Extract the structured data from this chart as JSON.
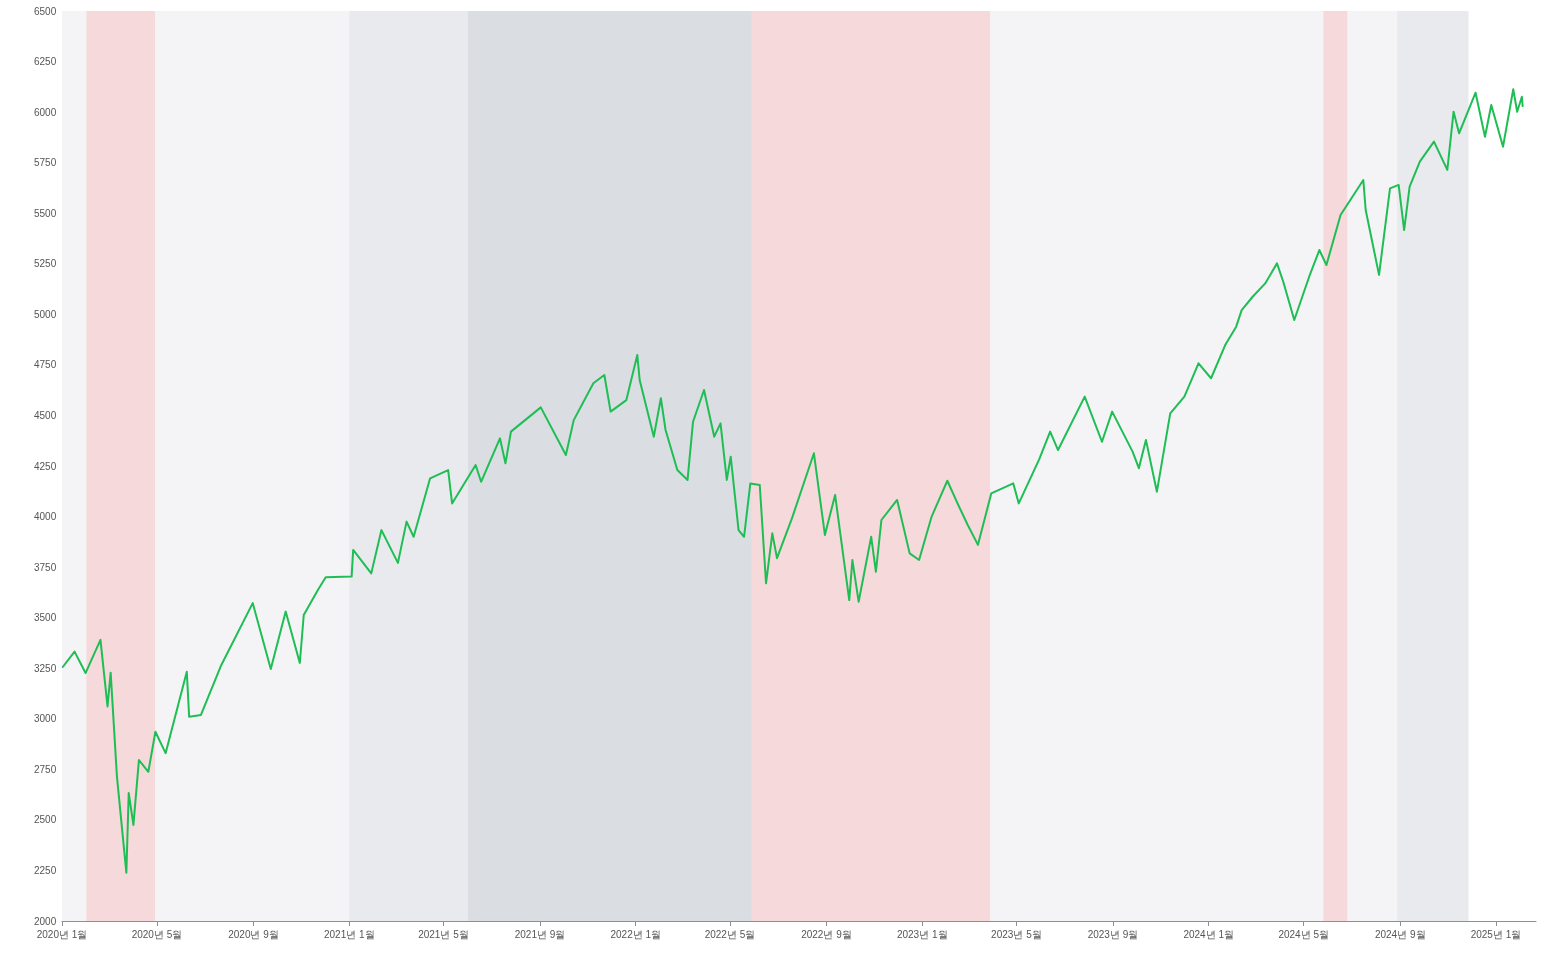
{
  "chart_data": {
    "type": "line",
    "x": [
      "2020-01-02",
      "2020-01-17",
      "2020-01-31",
      "2020-02-19",
      "2020-02-28",
      "2020-03-03",
      "2020-03-11",
      "2020-03-23",
      "2020-03-26",
      "2020-04-01",
      "2020-04-08",
      "2020-04-20",
      "2020-04-29",
      "2020-05-12",
      "2020-06-08",
      "2020-06-11",
      "2020-06-26",
      "2020-07-22",
      "2020-08-31",
      "2020-09-23",
      "2020-10-12",
      "2020-10-30",
      "2020-11-04",
      "2020-11-22",
      "2020-12-02",
      "2021-01-04",
      "2021-01-06",
      "2021-01-29",
      "2021-02-11",
      "2021-03-04",
      "2021-03-15",
      "2021-03-24",
      "2021-04-14",
      "2021-05-07",
      "2021-05-12",
      "2021-06-11",
      "2021-06-18",
      "2021-07-12",
      "2021-07-19",
      "2021-07-26",
      "2021-09-02",
      "2021-10-04",
      "2021-10-14",
      "2021-11-08",
      "2021-11-22",
      "2021-11-30",
      "2021-12-20",
      "2022-01-03",
      "2022-01-06",
      "2022-01-24",
      "2022-02-02",
      "2022-02-08",
      "2022-02-23",
      "2022-03-08",
      "2022-03-15",
      "2022-03-29",
      "2022-04-11",
      "2022-04-19",
      "2022-04-27",
      "2022-05-02",
      "2022-05-12",
      "2022-05-19",
      "2022-05-27",
      "2022-06-08",
      "2022-06-16",
      "2022-06-24",
      "2022-06-30",
      "2022-07-19",
      "2022-08-16",
      "2022-08-30",
      "2022-09-12",
      "2022-09-30",
      "2022-10-04",
      "2022-10-12",
      "2022-10-28",
      "2022-11-03",
      "2022-11-10",
      "2022-11-30",
      "2022-12-16",
      "2022-12-28",
      "2023-01-13",
      "2023-02-02",
      "2023-02-15",
      "2023-02-28",
      "2023-03-13",
      "2023-03-30",
      "2023-04-27",
      "2023-05-04",
      "2023-05-30",
      "2023-06-13",
      "2023-06-23",
      "2023-07-27",
      "2023-08-18",
      "2023-08-31",
      "2023-09-26",
      "2023-10-04",
      "2023-10-13",
      "2023-10-27",
      "2023-11-13",
      "2023-12-01",
      "2023-12-19",
      "2024-01-04",
      "2024-01-22",
      "2024-02-05",
      "2024-02-12",
      "2024-02-26",
      "2024-03-13",
      "2024-03-28",
      "2024-04-05",
      "2024-04-19",
      "2024-05-08",
      "2024-05-21",
      "2024-05-30",
      "2024-06-17",
      "2024-07-16",
      "2024-07-19",
      "2024-08-05",
      "2024-08-19",
      "2024-08-30",
      "2024-09-06",
      "2024-09-13",
      "2024-09-26",
      "2024-10-14",
      "2024-10-31",
      "2024-11-08",
      "2024-11-15",
      "2024-12-06",
      "2024-12-18",
      "2024-12-26",
      "2025-01-10",
      "2025-01-23",
      "2025-01-28",
      "2025-02-03",
      "2025-02-04"
    ],
    "series": [
      {
        "color": "#1fbe55",
        "values": [
          3256,
          3332,
          3226,
          3390,
          3061,
          3228,
          2714,
          2239,
          2633,
          2475,
          2796,
          2738,
          2936,
          2830,
          3233,
          3010,
          3019,
          3266,
          3572,
          3246,
          3530,
          3276,
          3513,
          3637,
          3700,
          3703,
          3835,
          3719,
          3933,
          3771,
          3975,
          3900,
          4189,
          4230,
          4065,
          4255,
          4172,
          4387,
          4263,
          4420,
          4540,
          4304,
          4477,
          4659,
          4700,
          4519,
          4576,
          4799,
          4675,
          4395,
          4585,
          4428,
          4230,
          4181,
          4469,
          4626,
          4395,
          4461,
          4181,
          4296,
          3933,
          3900,
          4164,
          4156,
          3670,
          3917,
          3794,
          3991,
          4313,
          3909,
          4107,
          3587,
          3785,
          3579,
          3900,
          3727,
          3983,
          4082,
          3818,
          3785,
          4000,
          4177,
          4065,
          3958,
          3860,
          4115,
          4164,
          4065,
          4283,
          4420,
          4329,
          4593,
          4370,
          4519,
          4321,
          4239,
          4379,
          4123,
          4510,
          4593,
          4758,
          4684,
          4848,
          4939,
          5021,
          5087,
          5153,
          5252,
          5161,
          4972,
          5186,
          5318,
          5244,
          5491,
          5664,
          5516,
          5195,
          5623,
          5640,
          5417,
          5631,
          5755,
          5854,
          5714,
          6002,
          5895,
          6096,
          5878,
          6035,
          5829,
          6113,
          6002,
          6076,
          6030
        ]
      }
    ],
    "xlim": [
      "2020-01-01",
      "2025-02-21"
    ],
    "xticks": [
      {
        "value": "2020-01-01",
        "label": "2020년 1월"
      },
      {
        "value": "2020-05-01",
        "label": "2020년 5월"
      },
      {
        "value": "2020-09-01",
        "label": "2020년 9월"
      },
      {
        "value": "2021-01-01",
        "label": "2021년 1월"
      },
      {
        "value": "2021-05-01",
        "label": "2021년 5월"
      },
      {
        "value": "2021-09-01",
        "label": "2021년 9월"
      },
      {
        "value": "2022-01-01",
        "label": "2022년 1월"
      },
      {
        "value": "2022-05-01",
        "label": "2022년 5월"
      },
      {
        "value": "2022-09-01",
        "label": "2022년 9월"
      },
      {
        "value": "2023-01-01",
        "label": "2023년 1월"
      },
      {
        "value": "2023-05-01",
        "label": "2023년 5월"
      },
      {
        "value": "2023-09-01",
        "label": "2023년 9월"
      },
      {
        "value": "2024-01-01",
        "label": "2024년 1월"
      },
      {
        "value": "2024-05-01",
        "label": "2024년 5월"
      },
      {
        "value": "2024-09-01",
        "label": "2024년 9월"
      },
      {
        "value": "2025-01-01",
        "label": "2025년 1월"
      }
    ],
    "ylim": [
      2000,
      6500
    ],
    "yticks": [
      2000,
      2250,
      2500,
      2750,
      3000,
      3250,
      3500,
      3750,
      4000,
      4250,
      4500,
      4750,
      5000,
      5250,
      5500,
      5750,
      6000,
      6250,
      6500
    ],
    "bands": [
      {
        "axis": "x",
        "from": "2020-01-01",
        "to": "2020-02-01",
        "color": "#f4f4f6"
      },
      {
        "axis": "x",
        "from": "2020-02-01",
        "to": "2020-04-29",
        "color": "#f5d9db"
      },
      {
        "axis": "x",
        "from": "2020-04-29",
        "to": "2021-01-01",
        "color": "#f4f4f6"
      },
      {
        "axis": "x",
        "from": "2021-01-01",
        "to": "2021-06-01",
        "color": "#e9eaed"
      },
      {
        "axis": "x",
        "from": "2021-06-01",
        "to": "2022-05-29",
        "color": "#dadde1"
      },
      {
        "axis": "x",
        "from": "2022-05-29",
        "to": "2023-03-29",
        "color": "#f5d9db"
      },
      {
        "axis": "x",
        "from": "2023-03-29",
        "to": "2024-05-26",
        "color": "#f4f4f6"
      },
      {
        "axis": "x",
        "from": "2024-05-26",
        "to": "2024-06-26",
        "color": "#f5d9db"
      },
      {
        "axis": "x",
        "from": "2024-06-26",
        "to": "2024-08-28",
        "color": "#f4f4f6"
      },
      {
        "axis": "x",
        "from": "2024-08-28",
        "to": "2024-11-27",
        "color": "#e9eaed"
      }
    ],
    "grid": false,
    "marker": "none",
    "line_style": "solid"
  }
}
